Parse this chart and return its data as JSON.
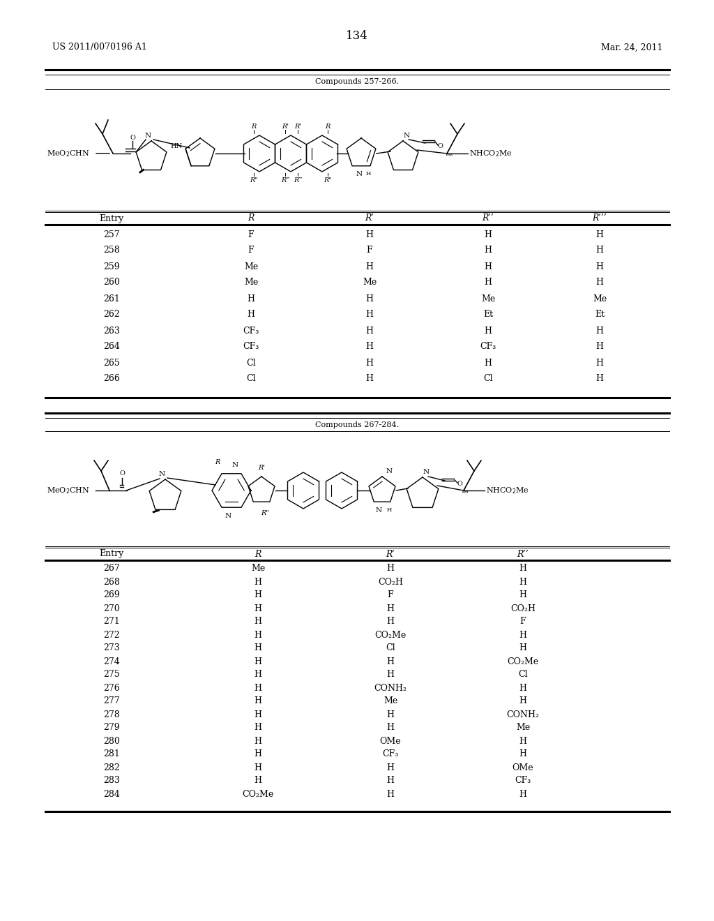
{
  "page_number": "134",
  "patent_left": "US 2011/0070196 A1",
  "patent_right": "Mar. 24, 2011",
  "section1_title": "Compounds 257-266.",
  "section2_title": "Compounds 267-284.",
  "table1_headers": [
    "Entry",
    "R",
    "R’",
    "R’’",
    "R’’’"
  ],
  "table1_rows": [
    [
      "257",
      "F",
      "H",
      "H",
      "H"
    ],
    [
      "258",
      "F",
      "F",
      "H",
      "H"
    ],
    [
      "259",
      "Me",
      "H",
      "H",
      "H"
    ],
    [
      "260",
      "Me",
      "Me",
      "H",
      "H"
    ],
    [
      "261",
      "H",
      "H",
      "Me",
      "Me"
    ],
    [
      "262",
      "H",
      "H",
      "Et",
      "Et"
    ],
    [
      "263",
      "CF₃",
      "H",
      "H",
      "H"
    ],
    [
      "264",
      "CF₃",
      "H",
      "CF₃",
      "H"
    ],
    [
      "265",
      "Cl",
      "H",
      "H",
      "H"
    ],
    [
      "266",
      "Cl",
      "H",
      "Cl",
      "H"
    ]
  ],
  "table2_headers": [
    "Entry",
    "R",
    "R’",
    "R’’"
  ],
  "table2_rows": [
    [
      "267",
      "Me",
      "H",
      "H"
    ],
    [
      "268",
      "H",
      "CO₂H",
      "H"
    ],
    [
      "269",
      "H",
      "F",
      "H"
    ],
    [
      "270",
      "H",
      "H",
      "CO₂H"
    ],
    [
      "271",
      "H",
      "H",
      "F"
    ],
    [
      "272",
      "H",
      "CO₂Me",
      "H"
    ],
    [
      "273",
      "H",
      "Cl",
      "H"
    ],
    [
      "274",
      "H",
      "H",
      "CO₂Me"
    ],
    [
      "275",
      "H",
      "H",
      "Cl"
    ],
    [
      "276",
      "H",
      "CONH₂",
      "H"
    ],
    [
      "277",
      "H",
      "Me",
      "H"
    ],
    [
      "278",
      "H",
      "H",
      "CONH₂"
    ],
    [
      "279",
      "H",
      "H",
      "Me"
    ],
    [
      "280",
      "H",
      "OMe",
      "H"
    ],
    [
      "281",
      "H",
      "CF₃",
      "H"
    ],
    [
      "282",
      "H",
      "H",
      "OMe"
    ],
    [
      "283",
      "H",
      "H",
      "CF₃"
    ],
    [
      "284",
      "CO₂Me",
      "H",
      "H"
    ]
  ],
  "background_color": "#ffffff",
  "text_color": "#000000"
}
